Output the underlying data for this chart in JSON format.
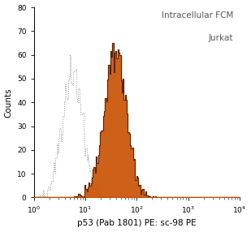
{
  "title_line1": "Intracellular FCM",
  "title_line2": "Jurkat",
  "xlabel": "p53 (Pab 1801) PE: sc-98 PE",
  "ylabel": "Counts",
  "xlim_log": [
    0,
    4
  ],
  "ylim": [
    0,
    80
  ],
  "yticks": [
    0,
    10,
    20,
    30,
    40,
    50,
    60,
    70,
    80
  ],
  "background_color": "#ffffff",
  "filled_color": "#c85000",
  "filled_edge_color": "#2a0a00",
  "control_color": "#888888",
  "figsize": [
    3.09,
    2.86
  ],
  "dpi": 100,
  "title_fontsize": 7.5,
  "axis_label_fontsize": 7.5,
  "tick_fontsize": 6.5,
  "control_peak_log": 0.75,
  "control_sigma_log": 0.2,
  "control_n": 2000,
  "control_peak_height": 60,
  "p53_peak_log": 1.58,
  "p53_sigma_log": 0.22,
  "p53_n": 4000,
  "p53_peak_height": 65,
  "n_bins": 200
}
